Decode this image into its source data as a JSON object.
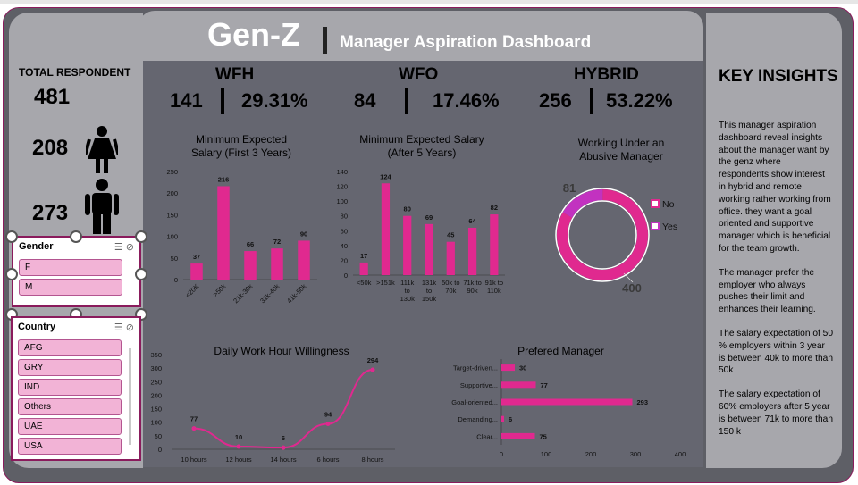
{
  "header": {
    "title": "Gen-Z",
    "subtitle": "Manager Aspiration Dashboard"
  },
  "left": {
    "total_label": "TOTAL RESPONDENT",
    "total_value": "481",
    "female_value": "208",
    "male_value": "273",
    "gender_slicer": {
      "title": "Gender",
      "items": [
        "F",
        "M"
      ]
    },
    "country_slicer": {
      "title": "Country",
      "items": [
        "AFG",
        "GRY",
        "IND",
        "Others",
        "UAE",
        "USA"
      ]
    }
  },
  "kpis": [
    {
      "title": "WFH",
      "count": "141",
      "percent": "29.31%"
    },
    {
      "title": "WFO",
      "count": "84",
      "percent": "17.46%"
    },
    {
      "title": "HYBRID",
      "count": "256",
      "percent": "53.22%"
    }
  ],
  "insights": {
    "title": "KEY INSIGHTS",
    "paragraphs": [
      "This manager aspiration dashboard reveal insights about the manager want by the genz where respondents show interest in hybrid and remote working rather working from office. they want a goal oriented and supportive manager which is beneficial for the team growth.",
      "The manager prefer the employer who always pushes their limit and enhances their learning.",
      "The salary expectation of 50 % employers within 3 year is between 40k to more than 50k",
      "The salary expectation of 60% employers after 5 year is between 71k to more than 150 k"
    ]
  },
  "colors": {
    "accent": "#e0298f",
    "panel": "#a7a7ac",
    "center": "#656670"
  },
  "chart_data": [
    {
      "type": "bar",
      "title": "Minimum Expected Salary (First 3 Years)",
      "categories": [
        "<20K",
        ">50k",
        "21k-30k",
        "31k-40k",
        "41k-50k"
      ],
      "values": [
        37,
        216,
        66,
        72,
        90
      ],
      "ylim": [
        0,
        250
      ],
      "yticks": [
        "0",
        "50",
        "100",
        "150",
        "200",
        "250"
      ]
    },
    {
      "type": "bar",
      "title": "Minimum Expected Salary (After 5 Years)",
      "categories": [
        "<50k",
        ">151k",
        "111k to 130k",
        "131k to 150k",
        "50k to 70k",
        "71k to 90k",
        "91k to 110k"
      ],
      "category_lines": [
        [
          "<50k"
        ],
        [
          ">151k"
        ],
        [
          "111k",
          "to",
          "130k"
        ],
        [
          "131k",
          "to",
          "150k"
        ],
        [
          "50k to",
          "70k"
        ],
        [
          "71k to",
          "90k"
        ],
        [
          "91k to",
          "110k"
        ]
      ],
      "values": [
        17,
        124,
        80,
        69,
        45,
        64,
        82
      ],
      "ylim": [
        0,
        140
      ],
      "yticks": [
        "0",
        "20",
        "40",
        "60",
        "80",
        "100",
        "120",
        "140"
      ]
    },
    {
      "type": "pie",
      "title": "Working Under an Abusive Manager",
      "labels": [
        "No",
        "Yes"
      ],
      "values": [
        400,
        81
      ],
      "value_labels": [
        "400",
        "81"
      ]
    },
    {
      "type": "line",
      "title": "Daily Work Hour Willingness",
      "categories": [
        "10 hours",
        "12 hours",
        "14 hours",
        "6 hours",
        "8 hours"
      ],
      "values": [
        77,
        10,
        6,
        94,
        294
      ],
      "ylim": [
        0,
        350
      ],
      "yticks": [
        "0",
        "50",
        "100",
        "150",
        "200",
        "250",
        "300",
        "350"
      ]
    },
    {
      "type": "bar",
      "orientation": "horizontal",
      "title": "Prefered Manager",
      "categories": [
        "Target-driven...",
        "Supportive...",
        "Goal-oriented...",
        "Demanding...",
        "Clear..."
      ],
      "values": [
        30,
        77,
        293,
        6,
        75
      ],
      "xlim": [
        0,
        400
      ],
      "xticks": [
        "0",
        "100",
        "200",
        "300",
        "400"
      ]
    }
  ]
}
